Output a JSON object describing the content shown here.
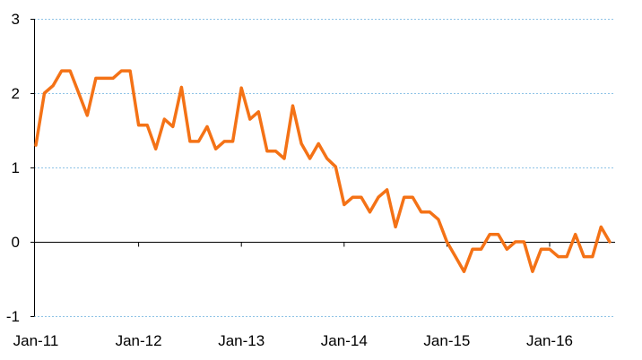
{
  "chart_data": {
    "type": "line",
    "title": "",
    "xlabel": "",
    "ylabel": "",
    "ylim": [
      -1,
      3
    ],
    "y_ticks": [
      -1,
      0,
      1,
      2,
      3
    ],
    "x_ticks": [
      "Jan-11",
      "Jan-12",
      "Jan-13",
      "Jan-14",
      "Jan-15",
      "Jan-16"
    ],
    "grid": "horizontal",
    "legend": "none",
    "color": "#f47216",
    "x_start": "Jan-11",
    "series": [
      {
        "values": [
          1.3,
          2.0,
          2.1,
          2.3,
          2.3,
          2.0,
          1.7,
          2.2,
          2.2,
          2.2,
          2.3,
          2.3,
          1.57,
          1.57,
          1.25,
          1.65,
          1.55,
          2.08,
          1.35,
          1.35,
          1.55,
          1.25,
          1.35,
          1.35,
          2.07,
          1.65,
          1.75,
          1.22,
          1.22,
          1.12,
          1.83,
          1.32,
          1.12,
          1.32,
          1.12,
          1.01,
          0.5,
          0.6,
          0.6,
          0.4,
          0.6,
          0.7,
          0.2,
          0.6,
          0.6,
          0.4,
          0.4,
          0.3,
          0.0,
          -0.2,
          -0.4,
          -0.1,
          -0.1,
          0.1,
          0.1,
          -0.1,
          0.0,
          0.0,
          -0.4,
          -0.1,
          -0.1,
          -0.2,
          -0.2,
          0.1,
          -0.2,
          -0.2,
          0.2,
          0.0
        ]
      }
    ]
  }
}
